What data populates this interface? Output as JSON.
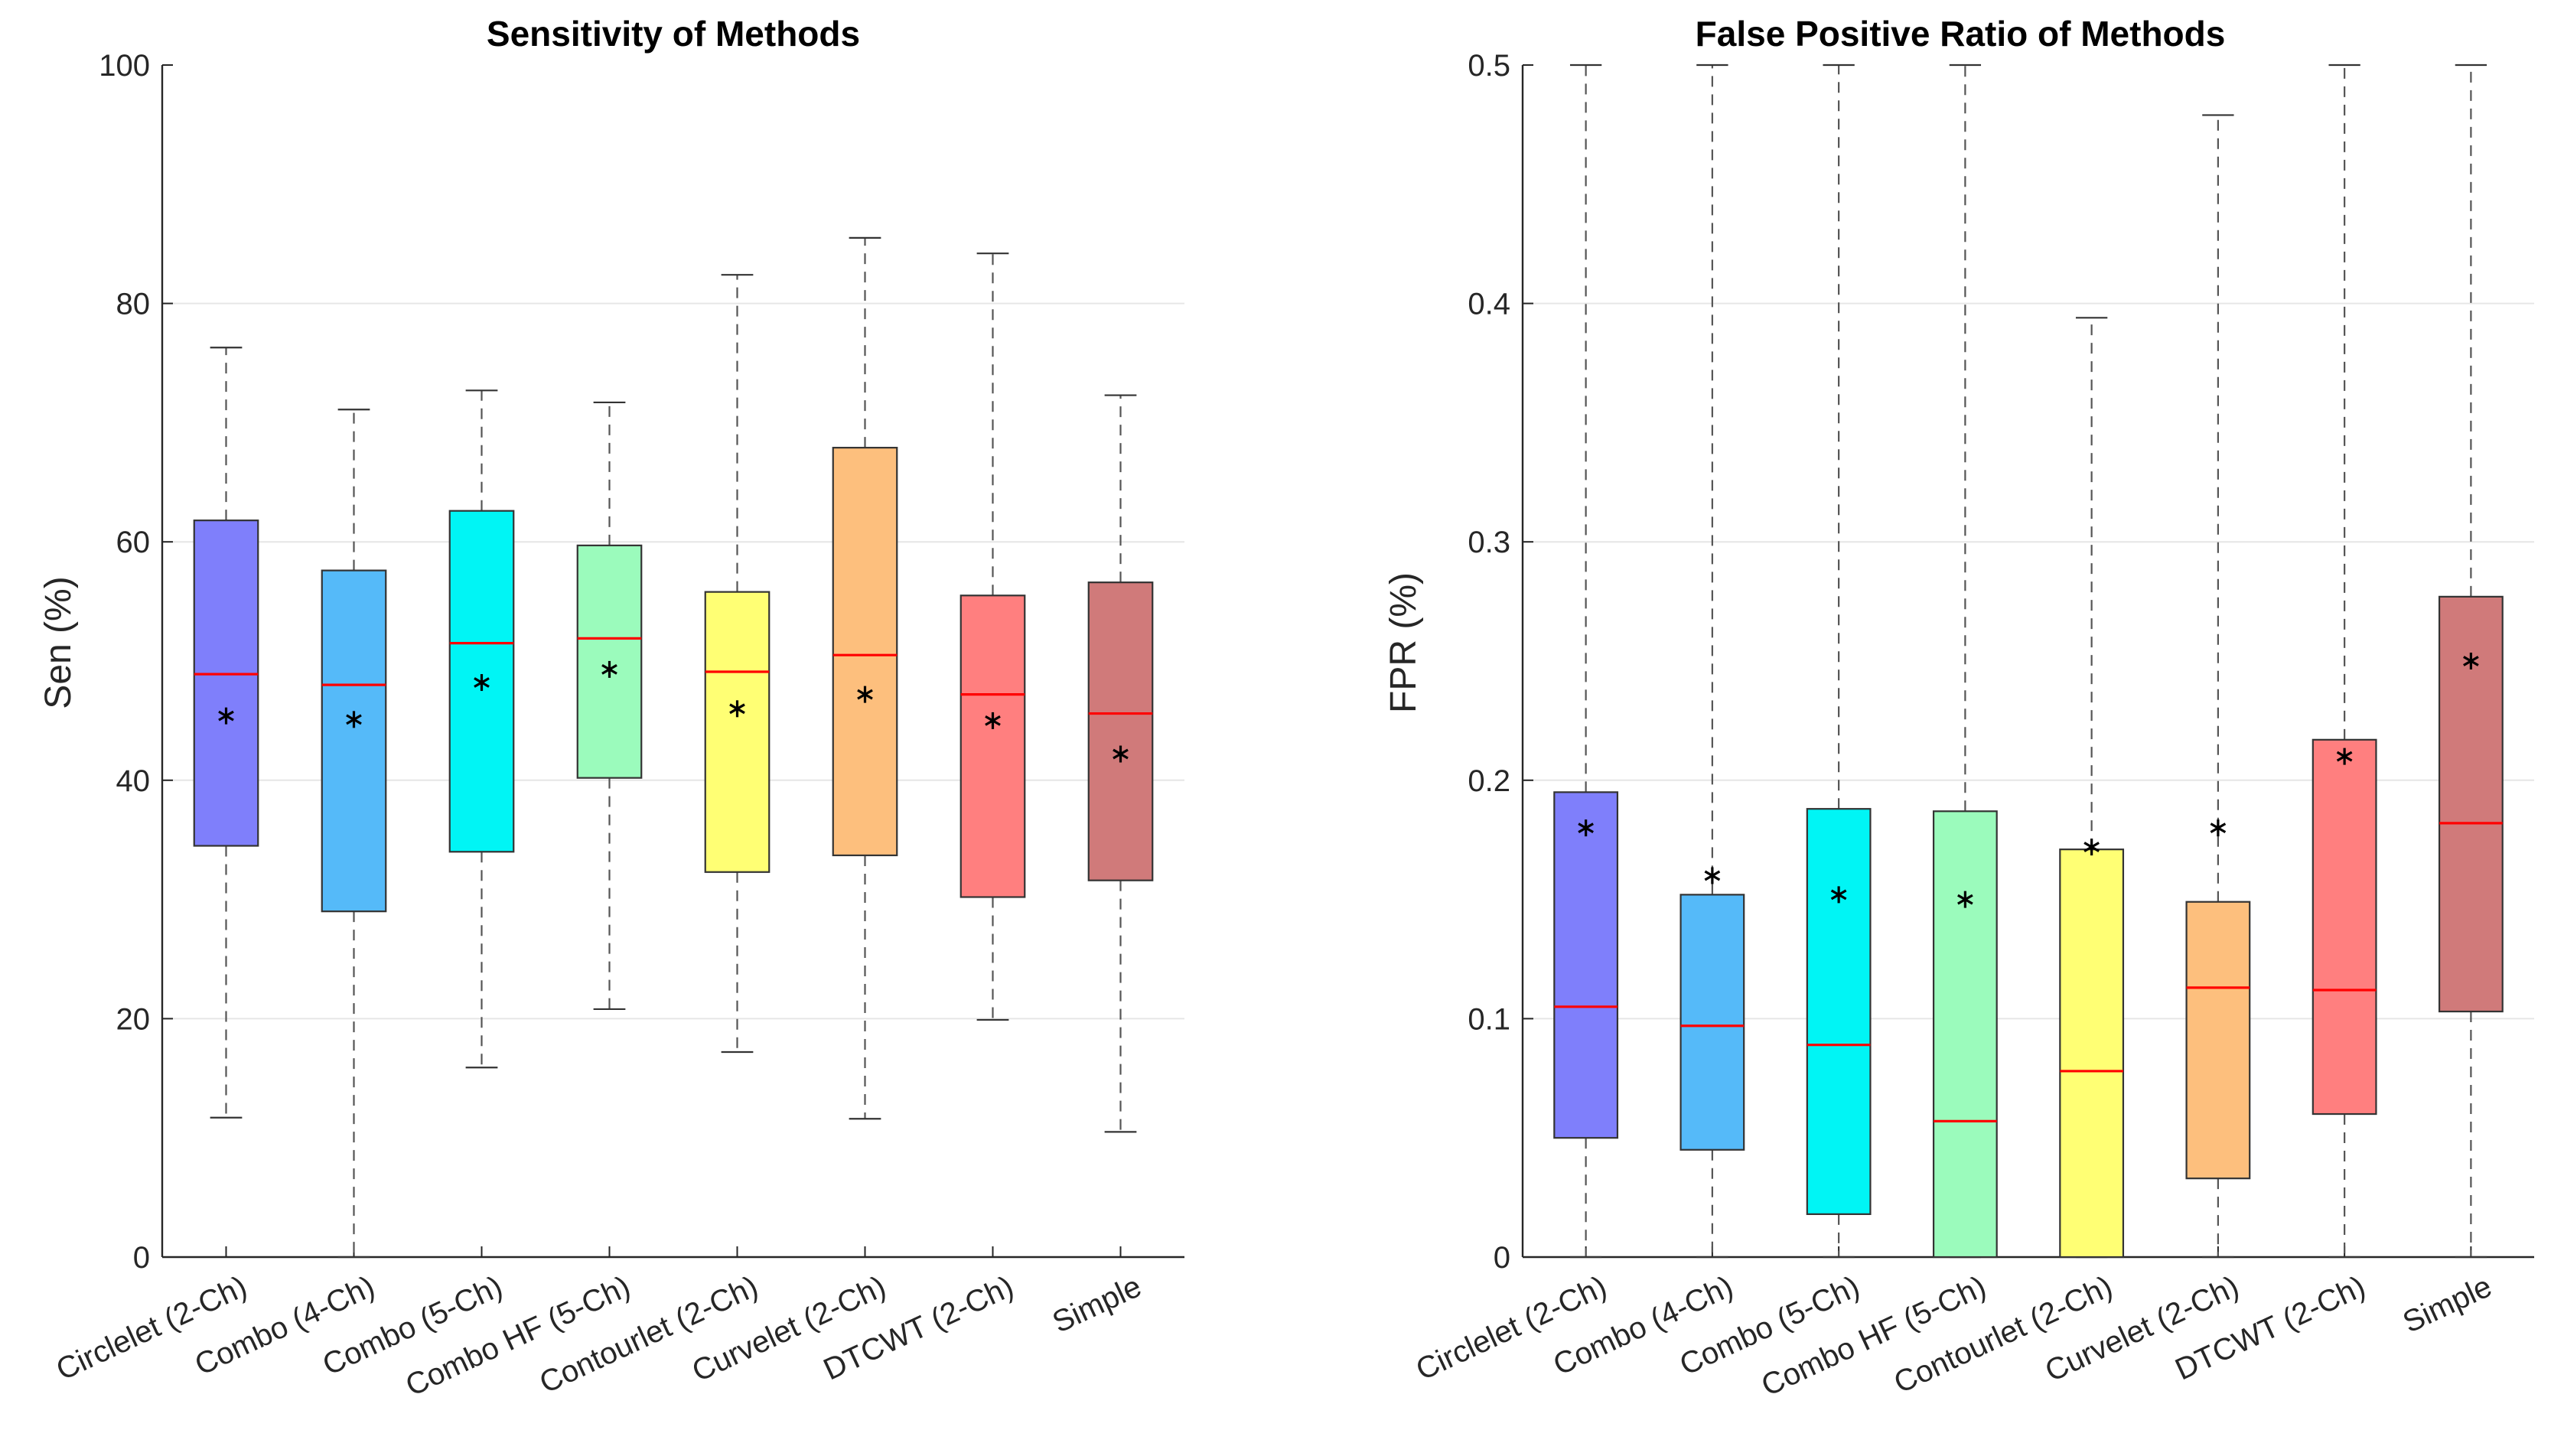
{
  "chart_data": [
    {
      "type": "box",
      "title": "Sensitivity of Methods",
      "ylabel": "Sen (%)",
      "xlabel": "",
      "ylim": [
        0,
        100
      ],
      "yticks": [
        "0",
        "20",
        "40",
        "60",
        "80",
        "100"
      ],
      "ytick_values": [
        0,
        20,
        40,
        60,
        80,
        100
      ],
      "grid": true,
      "categories": [
        "Circlelet (2-Ch)",
        "Combo (4-Ch)",
        "Combo (5-Ch)",
        "Combo HF (5-Ch)",
        "Contourlet (2-Ch)",
        "Curvelet (2-Ch)",
        "DTCWT (2-Ch)",
        "Simple"
      ],
      "colors": [
        "#7f7ffb",
        "#55baf9",
        "#00f5f5",
        "#9bfbbc",
        "#ffff74",
        "#fdbf7d",
        "#ff7f7f",
        "#d07a7a"
      ],
      "boxes": [
        {
          "whisker_low": 11.7,
          "q1": 34.5,
          "median": 48.9,
          "q3": 61.8,
          "whisker_high": 76.3,
          "mean": 45.4
        },
        {
          "whisker_low": 0,
          "q1": 29.0,
          "median": 48.0,
          "q3": 57.6,
          "whisker_high": 71.1,
          "mean": 45.1
        },
        {
          "whisker_low": 15.9,
          "q1": 34.0,
          "median": 51.5,
          "q3": 62.6,
          "whisker_high": 72.7,
          "mean": 48.2
        },
        {
          "whisker_low": 20.8,
          "q1": 40.2,
          "median": 51.9,
          "q3": 59.7,
          "whisker_high": 71.7,
          "mean": 49.3
        },
        {
          "whisker_low": 17.2,
          "q1": 32.3,
          "median": 49.1,
          "q3": 55.8,
          "whisker_high": 82.4,
          "mean": 46.0
        },
        {
          "whisker_low": 11.6,
          "q1": 33.7,
          "median": 50.5,
          "q3": 67.9,
          "whisker_high": 85.5,
          "mean": 47.2
        },
        {
          "whisker_low": 19.9,
          "q1": 30.2,
          "median": 47.2,
          "q3": 55.5,
          "whisker_high": 84.2,
          "mean": 45.0
        },
        {
          "whisker_low": 10.5,
          "q1": 31.6,
          "median": 45.6,
          "q3": 56.6,
          "whisker_high": 72.3,
          "mean": 42.2
        }
      ]
    },
    {
      "type": "box",
      "title": "False Positive Ratio of Methods",
      "ylabel": "FPR (%)",
      "xlabel": "",
      "ylim": [
        0,
        0.5
      ],
      "yticks": [
        "0",
        "0.1",
        "0.2",
        "0.3",
        "0.4",
        "0.5"
      ],
      "ytick_values": [
        0,
        0.1,
        0.2,
        0.3,
        0.4,
        0.5
      ],
      "grid": true,
      "categories": [
        "Circlelet (2-Ch)",
        "Combo (4-Ch)",
        "Combo (5-Ch)",
        "Combo HF (5-Ch)",
        "Contourlet (2-Ch)",
        "Curvelet (2-Ch)",
        "DTCWT (2-Ch)",
        "Simple"
      ],
      "colors": [
        "#7f7ffb",
        "#55baf9",
        "#00f5f5",
        "#9bfbbc",
        "#ffff74",
        "#fdbf7d",
        "#ff7f7f",
        "#d07a7a"
      ],
      "boxes": [
        {
          "whisker_low": 0,
          "q1": 0.05,
          "median": 0.105,
          "q3": 0.195,
          "whisker_high": 0.5,
          "mean": 0.18
        },
        {
          "whisker_low": 0,
          "q1": 0.045,
          "median": 0.097,
          "q3": 0.152,
          "whisker_high": 0.5,
          "mean": 0.16
        },
        {
          "whisker_low": 0,
          "q1": 0.018,
          "median": 0.089,
          "q3": 0.188,
          "whisker_high": 0.5,
          "mean": 0.152
        },
        {
          "whisker_low": 0,
          "q1": 0,
          "median": 0.057,
          "q3": 0.187,
          "whisker_high": 0.5,
          "mean": 0.15
        },
        {
          "whisker_low": 0,
          "q1": 0,
          "median": 0.078,
          "q3": 0.171,
          "whisker_high": 0.394,
          "mean": 0.172
        },
        {
          "whisker_low": 0,
          "q1": 0.033,
          "median": 0.113,
          "q3": 0.149,
          "whisker_high": 0.479,
          "mean": 0.18
        },
        {
          "whisker_low": 0,
          "q1": 0.06,
          "median": 0.112,
          "q3": 0.217,
          "whisker_high": 0.5,
          "mean": 0.21
        },
        {
          "whisker_low": 0,
          "q1": 0.103,
          "median": 0.182,
          "q3": 0.277,
          "whisker_high": 0.5,
          "mean": 0.25
        }
      ]
    }
  ]
}
